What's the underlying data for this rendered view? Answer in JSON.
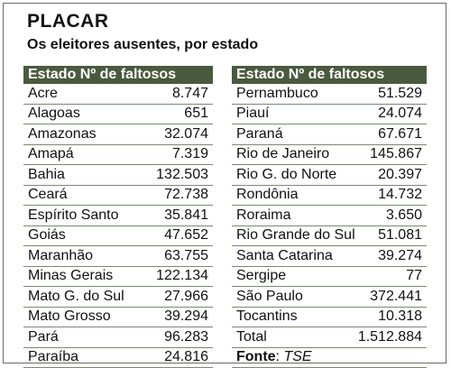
{
  "header": {
    "title": "PLACAR",
    "subtitle": "Os eleitores ausentes, por estado"
  },
  "columns": {
    "state": "Estado",
    "absent": "Nº de faltosos"
  },
  "left_rows": [
    {
      "state": "Acre",
      "value": "8.747"
    },
    {
      "state": "Alagoas",
      "value": "651"
    },
    {
      "state": "Amazonas",
      "value": "32.074"
    },
    {
      "state": "Amapá",
      "value": "7.319"
    },
    {
      "state": "Bahia",
      "value": "132.503"
    },
    {
      "state": "Ceará",
      "value": "72.738"
    },
    {
      "state": "Espírito Santo",
      "value": "35.841"
    },
    {
      "state": "Goiás",
      "value": "47.652"
    },
    {
      "state": "Maranhão",
      "value": "63.755"
    },
    {
      "state": "Minas Gerais",
      "value": "122.134"
    },
    {
      "state": "Mato G. do Sul",
      "value": "27.966"
    },
    {
      "state": "Mato Grosso",
      "value": "39.294"
    },
    {
      "state": "Pará",
      "value": "96.283"
    },
    {
      "state": "Paraíba",
      "value": "24.816"
    }
  ],
  "right_rows": [
    {
      "state": "Pernambuco",
      "value": "51.529"
    },
    {
      "state": "Piauí",
      "value": "24.074"
    },
    {
      "state": "Paraná",
      "value": "67.671"
    },
    {
      "state": "Rio de Janeiro",
      "value": "145.867"
    },
    {
      "state": "Rio G. do Norte",
      "value": "20.397"
    },
    {
      "state": "Rondônia",
      "value": "14.732"
    },
    {
      "state": "Roraima",
      "value": "3.650"
    },
    {
      "state": "Rio Grande do Sul",
      "value": "51.081"
    },
    {
      "state": "Santa Catarina",
      "value": "39.274"
    },
    {
      "state": "Sergipe",
      "value": "77"
    },
    {
      "state": "São Paulo",
      "value": "372.441"
    },
    {
      "state": "Tocantins",
      "value": "10.318"
    }
  ],
  "total": {
    "label": "Total",
    "value": "1.512.884"
  },
  "source": {
    "label": "Fonte",
    "value": "TSE"
  },
  "colors": {
    "header_bg": "#4a5a3e",
    "header_text": "#ffffff",
    "row_rule": "#7a8a6e"
  }
}
